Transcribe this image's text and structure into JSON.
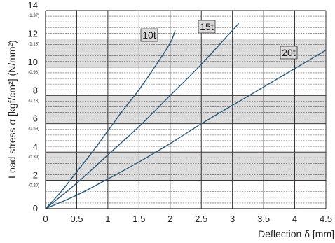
{
  "chart_data": {
    "type": "line",
    "title": "",
    "xlabel": "Deflection δ [mm]",
    "ylabel": "Load stress σ [kgf/cm²] (N/mm²)",
    "xlim": [
      0,
      4.5
    ],
    "ylim": [
      0,
      14
    ],
    "x_ticks": [
      "0",
      "0.5",
      "1",
      "1.5",
      "2",
      "2.5",
      "3",
      "3.5",
      "4",
      "4.5"
    ],
    "y_ticks": [
      {
        "value": 0,
        "label": "0",
        "sub": ""
      },
      {
        "value": 2,
        "label": "2",
        "sub": "(0.20)"
      },
      {
        "value": 4,
        "label": "4",
        "sub": "(0.39)"
      },
      {
        "value": 6,
        "label": "6",
        "sub": "(0.59)"
      },
      {
        "value": 8,
        "label": "8",
        "sub": "(0.78)"
      },
      {
        "value": 10,
        "label": "10",
        "sub": "(0.98)"
      },
      {
        "value": 12,
        "label": "12",
        "sub": "(1.18)"
      },
      {
        "value": 14,
        "label": "14",
        "sub": "(1.37)"
      }
    ],
    "grid": true,
    "colors": {
      "line": "#2e5a7a",
      "band": "#dcdcdc",
      "label_box": "#d9d9d9",
      "axis": "#231f20"
    },
    "series": [
      {
        "name": "10t",
        "x": [
          0,
          0.25,
          0.5,
          0.75,
          1.0,
          1.25,
          1.5,
          1.75,
          2.0,
          2.08
        ],
        "y": [
          0,
          1.2,
          2.6,
          4.0,
          5.5,
          7.0,
          8.4,
          10.0,
          11.7,
          12.6
        ]
      },
      {
        "name": "15t",
        "x": [
          0,
          0.5,
          1.0,
          1.5,
          2.0,
          2.5,
          3.0,
          3.1
        ],
        "y": [
          0,
          1.8,
          3.8,
          5.8,
          8.0,
          10.2,
          12.6,
          13.1
        ]
      },
      {
        "name": "20t",
        "x": [
          0,
          0.5,
          1.0,
          1.5,
          2.0,
          2.5,
          3.0,
          3.5,
          4.0,
          4.5
        ],
        "y": [
          0,
          0.95,
          2.1,
          3.3,
          4.6,
          6.0,
          7.3,
          8.6,
          9.9,
          11.2
        ]
      }
    ]
  }
}
